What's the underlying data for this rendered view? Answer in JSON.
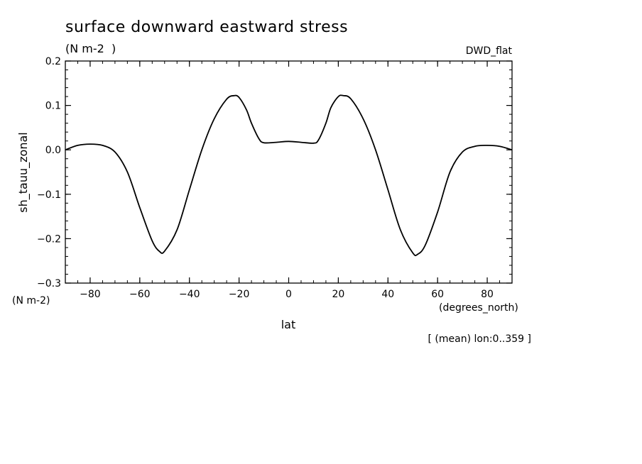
{
  "chart_data": {
    "type": "line",
    "title": "surface downward eastward stress",
    "subtitle": "(N m-2  )",
    "dataset_label": "DWD_flat",
    "ylabel": "sh_tauu_zonal",
    "y_units": "(N m-2)",
    "xlabel": "lat",
    "x_units": "(degrees_north)",
    "footnote": "[ (mean) lon:0..359 ]",
    "xlim": [
      -90,
      90
    ],
    "ylim": [
      -0.3,
      0.2
    ],
    "x_ticks": [
      -80,
      -60,
      -40,
      -20,
      0,
      20,
      40,
      60,
      80
    ],
    "x_tick_labels": [
      "−80",
      "−60",
      "−40",
      "−20",
      "0",
      "20",
      "40",
      "60",
      "80"
    ],
    "y_ticks": [
      -0.3,
      -0.2,
      -0.1,
      0.0,
      0.1,
      0.2
    ],
    "y_tick_labels": [
      "−0.3",
      "−0.2",
      "−0.1",
      "0.0",
      "0.1",
      "0.2"
    ],
    "grid": false,
    "line_color": "#000000",
    "series": [
      {
        "x": [
          -90,
          -85,
          -80,
          -75,
          -70,
          -65,
          -60,
          -55,
          -52,
          -50,
          -45,
          -40,
          -35,
          -30,
          -25,
          -22,
          -20,
          -17,
          -15,
          -12,
          -10,
          -5,
          0,
          5,
          10,
          12,
          15,
          17,
          20,
          22,
          25,
          30,
          35,
          40,
          45,
          50,
          52,
          55,
          60,
          65,
          70,
          75,
          80,
          85,
          90
        ],
        "y": [
          0.0,
          0.01,
          0.013,
          0.01,
          -0.005,
          -0.05,
          -0.13,
          -0.205,
          -0.229,
          -0.228,
          -0.18,
          -0.09,
          0.0,
          0.07,
          0.114,
          0.122,
          0.118,
          0.09,
          0.06,
          0.025,
          0.016,
          0.017,
          0.019,
          0.017,
          0.015,
          0.022,
          0.06,
          0.095,
          0.12,
          0.122,
          0.115,
          0.07,
          0.0,
          -0.09,
          -0.18,
          -0.232,
          -0.235,
          -0.215,
          -0.14,
          -0.05,
          -0.005,
          0.008,
          0.01,
          0.008,
          0.0
        ]
      }
    ]
  }
}
